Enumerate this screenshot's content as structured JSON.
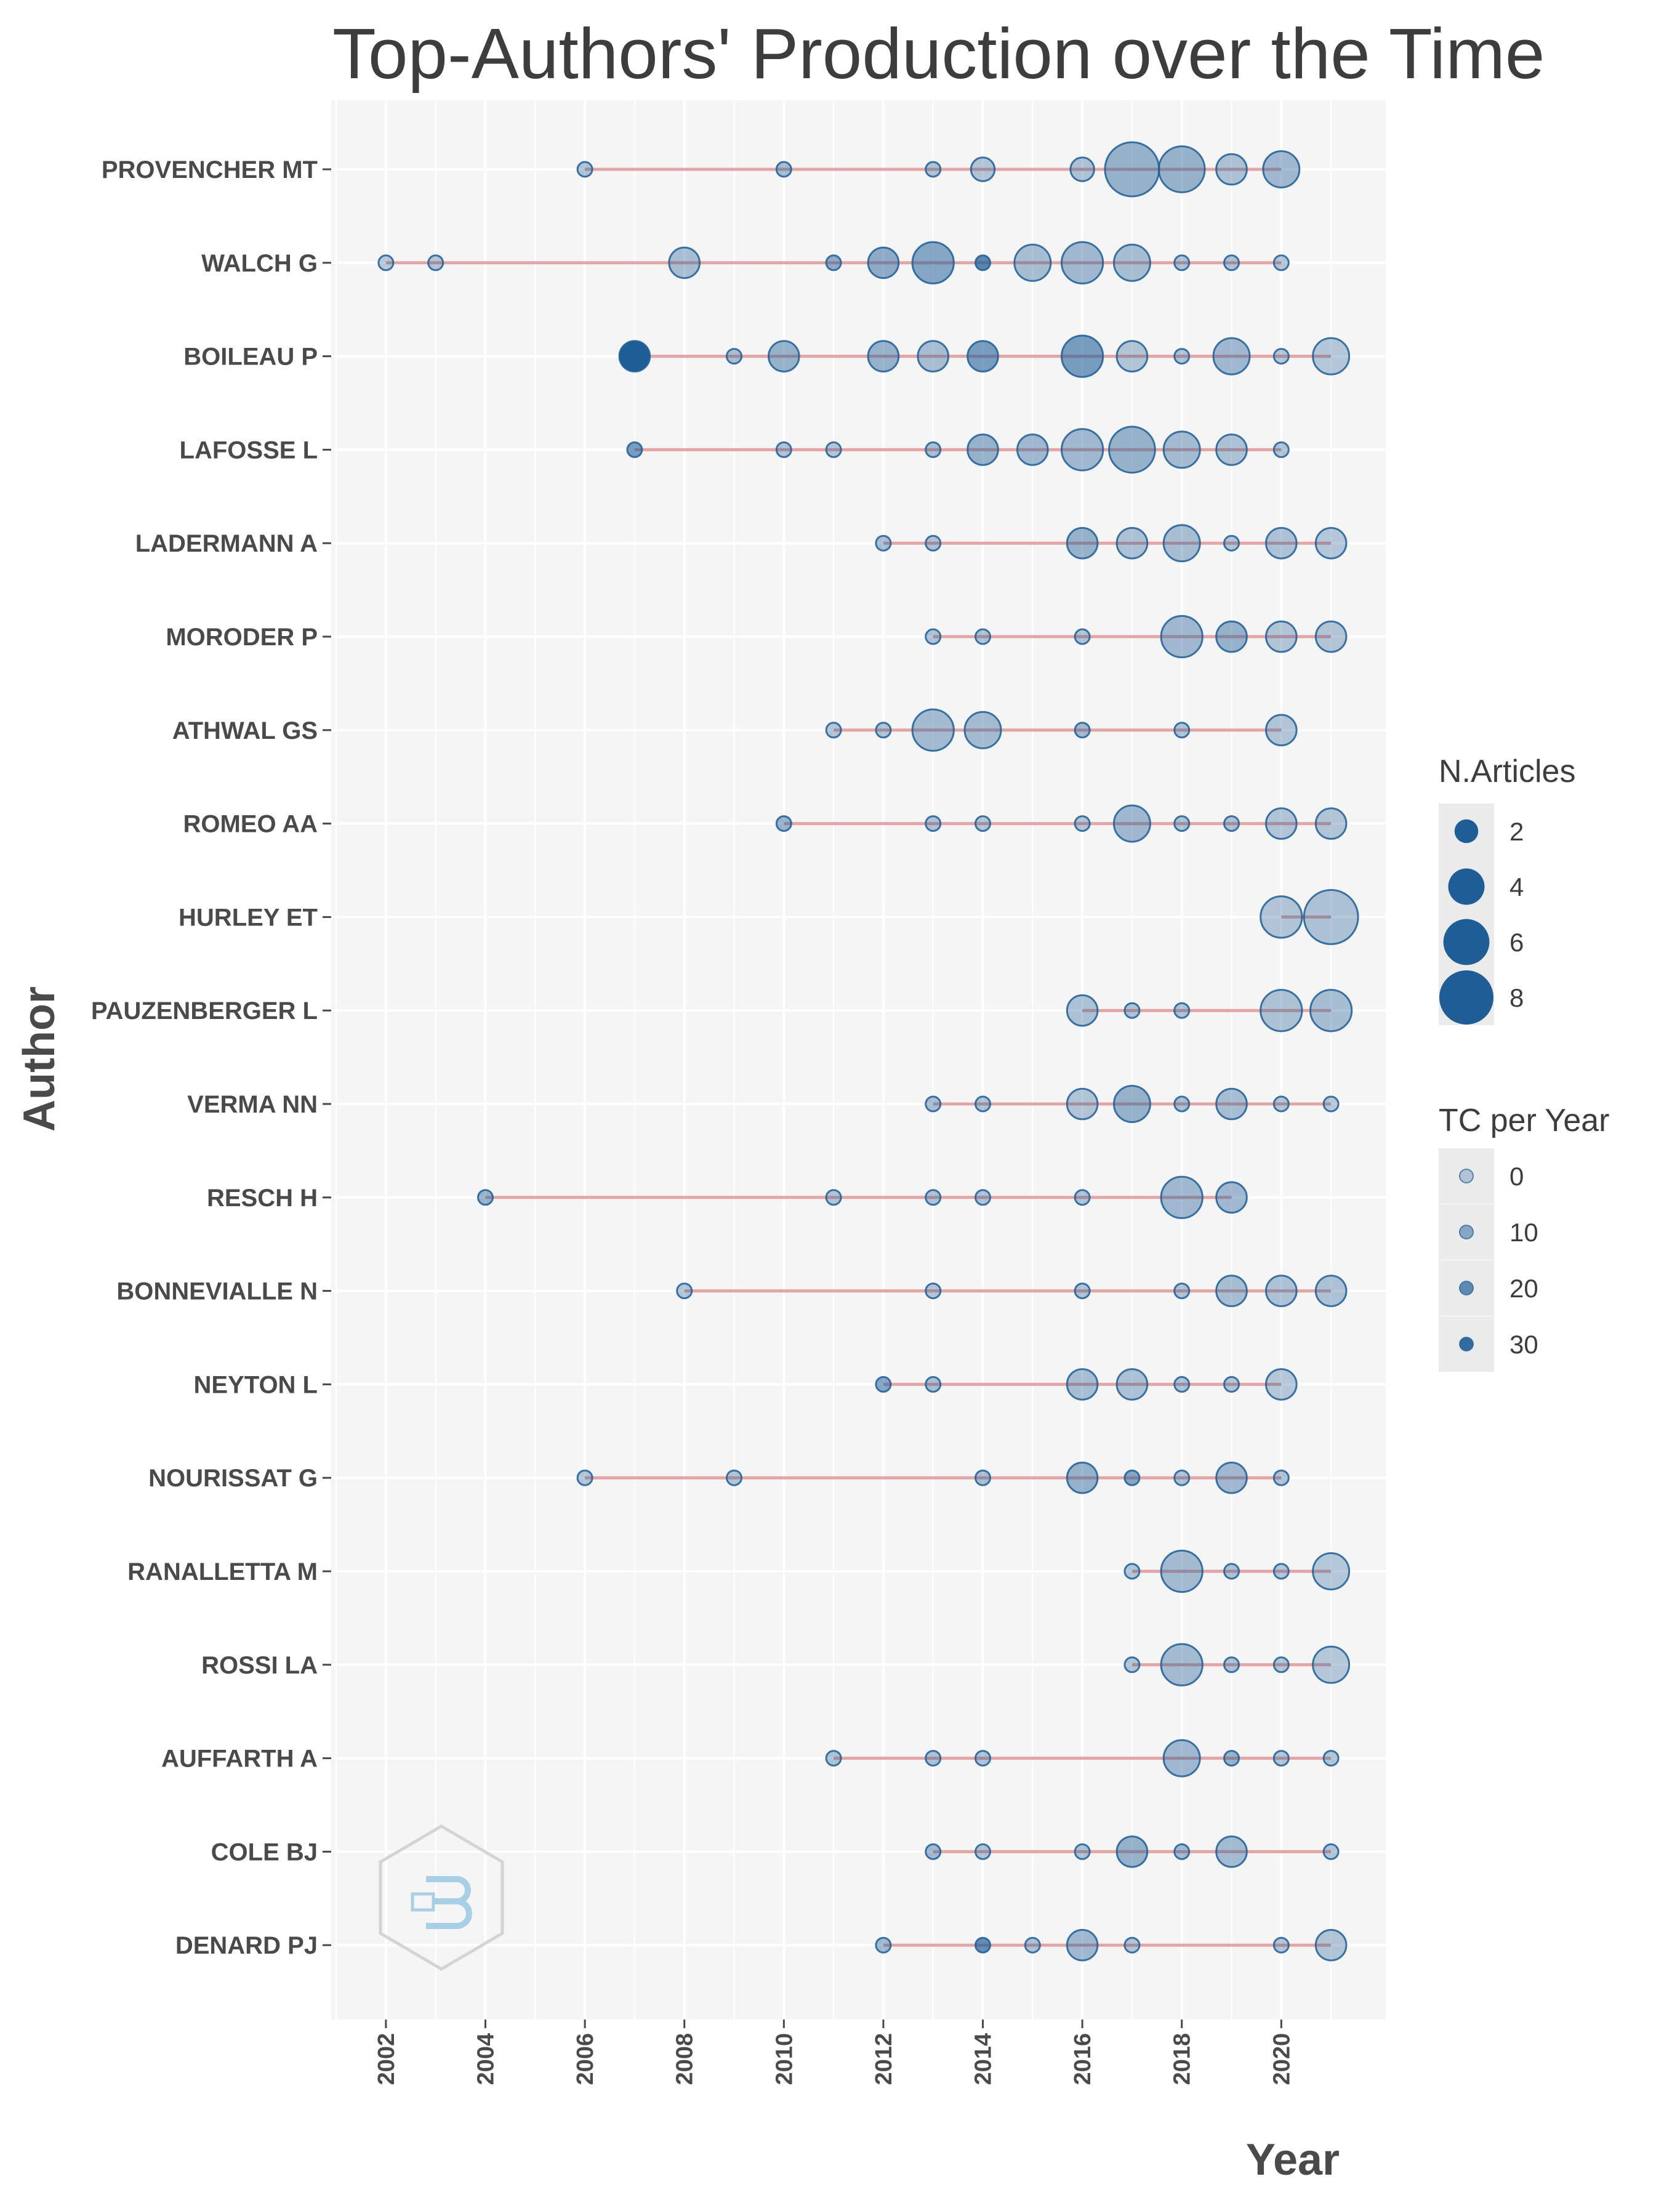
{
  "chart_data": {
    "type": "scatter",
    "title": "Top-Authors' Production over the Time",
    "xlabel": "Year",
    "ylabel": "Author",
    "xlim": [
      2000.9,
      2022.1
    ],
    "x_ticks": [
      2002,
      2004,
      2006,
      2008,
      2010,
      2012,
      2014,
      2016,
      2018,
      2020
    ],
    "grid": true,
    "colors": {
      "point": "#1f5d96",
      "line": "#e3a5a5",
      "panel": "#f5f5f5",
      "legend_key_bg": "#ebebeb"
    },
    "legend": {
      "position": "right",
      "size_title": "N.Articles",
      "size_breaks": [
        2,
        4,
        6,
        8
      ],
      "color_title": "TC per Year",
      "color_breaks": [
        0,
        10,
        20,
        30
      ]
    },
    "authors": [
      {
        "name": "PROVENCHER MT",
        "points": [
          [
            2006,
            1,
            3
          ],
          [
            2010,
            1,
            5
          ],
          [
            2013,
            1,
            3
          ],
          [
            2014,
            2,
            2
          ],
          [
            2016,
            2,
            3
          ],
          [
            2017,
            8,
            8
          ],
          [
            2018,
            6,
            8
          ],
          [
            2019,
            3,
            3
          ],
          [
            2020,
            4,
            6
          ]
        ]
      },
      {
        "name": "WALCH G",
        "points": [
          [
            2002,
            1,
            1
          ],
          [
            2003,
            1,
            2
          ],
          [
            2008,
            3,
            4
          ],
          [
            2011,
            1,
            10
          ],
          [
            2012,
            3,
            10
          ],
          [
            2013,
            5,
            12
          ],
          [
            2014,
            1,
            22
          ],
          [
            2015,
            4,
            4
          ],
          [
            2016,
            5,
            6
          ],
          [
            2017,
            4,
            4
          ],
          [
            2018,
            1,
            3
          ],
          [
            2019,
            1,
            3
          ],
          [
            2020,
            1,
            2
          ]
        ]
      },
      {
        "name": "BOILEAU P",
        "points": [
          [
            2007,
            3,
            35
          ],
          [
            2009,
            1,
            4
          ],
          [
            2010,
            3,
            8
          ],
          [
            2012,
            3,
            8
          ],
          [
            2013,
            3,
            4
          ],
          [
            2014,
            3,
            15
          ],
          [
            2016,
            5,
            15
          ],
          [
            2017,
            3,
            2
          ],
          [
            2018,
            1,
            3
          ],
          [
            2019,
            4,
            6
          ],
          [
            2020,
            1,
            2
          ],
          [
            2021,
            4,
            1
          ]
        ]
      },
      {
        "name": "LAFOSSE L",
        "points": [
          [
            2007,
            1,
            15
          ],
          [
            2010,
            1,
            3
          ],
          [
            2011,
            1,
            2
          ],
          [
            2013,
            1,
            4
          ],
          [
            2014,
            3,
            8
          ],
          [
            2015,
            3,
            6
          ],
          [
            2016,
            5,
            6
          ],
          [
            2017,
            6,
            8
          ],
          [
            2018,
            4,
            5
          ],
          [
            2019,
            3,
            3
          ],
          [
            2020,
            1,
            3
          ]
        ]
      },
      {
        "name": "LADERMANN A",
        "points": [
          [
            2012,
            1,
            4
          ],
          [
            2013,
            1,
            3
          ],
          [
            2016,
            3,
            8
          ],
          [
            2017,
            3,
            3
          ],
          [
            2018,
            4,
            4
          ],
          [
            2019,
            1,
            2
          ],
          [
            2020,
            3,
            3
          ],
          [
            2021,
            3,
            1
          ]
        ]
      },
      {
        "name": "MORODER P",
        "points": [
          [
            2013,
            1,
            3
          ],
          [
            2014,
            1,
            3
          ],
          [
            2016,
            1,
            3
          ],
          [
            2018,
            5,
            6
          ],
          [
            2019,
            3,
            8
          ],
          [
            2020,
            3,
            2
          ],
          [
            2021,
            3,
            2
          ]
        ]
      },
      {
        "name": "ATHWAL GS",
        "points": [
          [
            2011,
            1,
            2
          ],
          [
            2012,
            1,
            3
          ],
          [
            2013,
            5,
            5
          ],
          [
            2014,
            4,
            5
          ],
          [
            2016,
            1,
            6
          ],
          [
            2018,
            1,
            3
          ],
          [
            2020,
            3,
            2
          ]
        ]
      },
      {
        "name": "ROMEO AA",
        "points": [
          [
            2010,
            1,
            8
          ],
          [
            2013,
            1,
            3
          ],
          [
            2014,
            1,
            2
          ],
          [
            2016,
            1,
            2
          ],
          [
            2017,
            4,
            6
          ],
          [
            2018,
            1,
            3
          ],
          [
            2019,
            1,
            3
          ],
          [
            2020,
            3,
            2
          ],
          [
            2021,
            3,
            2
          ]
        ]
      },
      {
        "name": "HURLEY ET",
        "points": [
          [
            2020,
            5,
            2
          ],
          [
            2021,
            8,
            3
          ]
        ]
      },
      {
        "name": "PAUZENBERGER L",
        "points": [
          [
            2016,
            3,
            3
          ],
          [
            2017,
            1,
            3
          ],
          [
            2018,
            1,
            3
          ],
          [
            2020,
            5,
            3
          ],
          [
            2021,
            5,
            4
          ]
        ]
      },
      {
        "name": "VERMA NN",
        "points": [
          [
            2013,
            1,
            4
          ],
          [
            2014,
            1,
            3
          ],
          [
            2016,
            3,
            2
          ],
          [
            2017,
            4,
            8
          ],
          [
            2018,
            1,
            4
          ],
          [
            2019,
            3,
            4
          ],
          [
            2020,
            1,
            2
          ],
          [
            2021,
            1,
            1
          ]
        ]
      },
      {
        "name": "RESCH H",
        "points": [
          [
            2004,
            1,
            8
          ],
          [
            2011,
            1,
            2
          ],
          [
            2013,
            1,
            3
          ],
          [
            2014,
            1,
            3
          ],
          [
            2016,
            1,
            3
          ],
          [
            2018,
            5,
            6
          ],
          [
            2019,
            3,
            6
          ]
        ]
      },
      {
        "name": "BONNEVIALLE N",
        "points": [
          [
            2008,
            1,
            2
          ],
          [
            2013,
            1,
            2
          ],
          [
            2016,
            1,
            3
          ],
          [
            2018,
            1,
            3
          ],
          [
            2019,
            3,
            4
          ],
          [
            2020,
            3,
            3
          ],
          [
            2021,
            3,
            3
          ]
        ]
      },
      {
        "name": "NEYTON L",
        "points": [
          [
            2012,
            1,
            12
          ],
          [
            2013,
            1,
            4
          ],
          [
            2016,
            3,
            4
          ],
          [
            2017,
            3,
            3
          ],
          [
            2018,
            1,
            3
          ],
          [
            2019,
            1,
            2
          ],
          [
            2020,
            3,
            1
          ]
        ]
      },
      {
        "name": "NOURISSAT G",
        "points": [
          [
            2006,
            1,
            2
          ],
          [
            2009,
            1,
            2
          ],
          [
            2014,
            1,
            4
          ],
          [
            2016,
            3,
            8
          ],
          [
            2017,
            1,
            12
          ],
          [
            2018,
            1,
            3
          ],
          [
            2019,
            3,
            6
          ],
          [
            2020,
            1,
            3
          ]
        ]
      },
      {
        "name": "RANALLETTA M",
        "points": [
          [
            2017,
            1,
            2
          ],
          [
            2018,
            5,
            5
          ],
          [
            2019,
            1,
            3
          ],
          [
            2020,
            1,
            2
          ],
          [
            2021,
            4,
            1
          ]
        ]
      },
      {
        "name": "ROSSI LA",
        "points": [
          [
            2017,
            1,
            2
          ],
          [
            2018,
            5,
            5
          ],
          [
            2019,
            1,
            3
          ],
          [
            2020,
            1,
            2
          ],
          [
            2021,
            4,
            1
          ]
        ]
      },
      {
        "name": "AUFFARTH A",
        "points": [
          [
            2011,
            1,
            3
          ],
          [
            2013,
            1,
            3
          ],
          [
            2014,
            1,
            3
          ],
          [
            2018,
            4,
            6
          ],
          [
            2019,
            1,
            8
          ],
          [
            2020,
            1,
            2
          ],
          [
            2021,
            1,
            2
          ]
        ]
      },
      {
        "name": "COLE BJ",
        "points": [
          [
            2013,
            1,
            6
          ],
          [
            2014,
            1,
            3
          ],
          [
            2016,
            1,
            3
          ],
          [
            2017,
            3,
            8
          ],
          [
            2018,
            1,
            6
          ],
          [
            2019,
            3,
            5
          ],
          [
            2021,
            1,
            2
          ]
        ]
      },
      {
        "name": "DENARD PJ",
        "points": [
          [
            2012,
            1,
            6
          ],
          [
            2014,
            1,
            20
          ],
          [
            2015,
            1,
            3
          ],
          [
            2016,
            3,
            6
          ],
          [
            2017,
            1,
            2
          ],
          [
            2020,
            1,
            2
          ],
          [
            2021,
            3,
            2
          ]
        ]
      }
    ]
  }
}
